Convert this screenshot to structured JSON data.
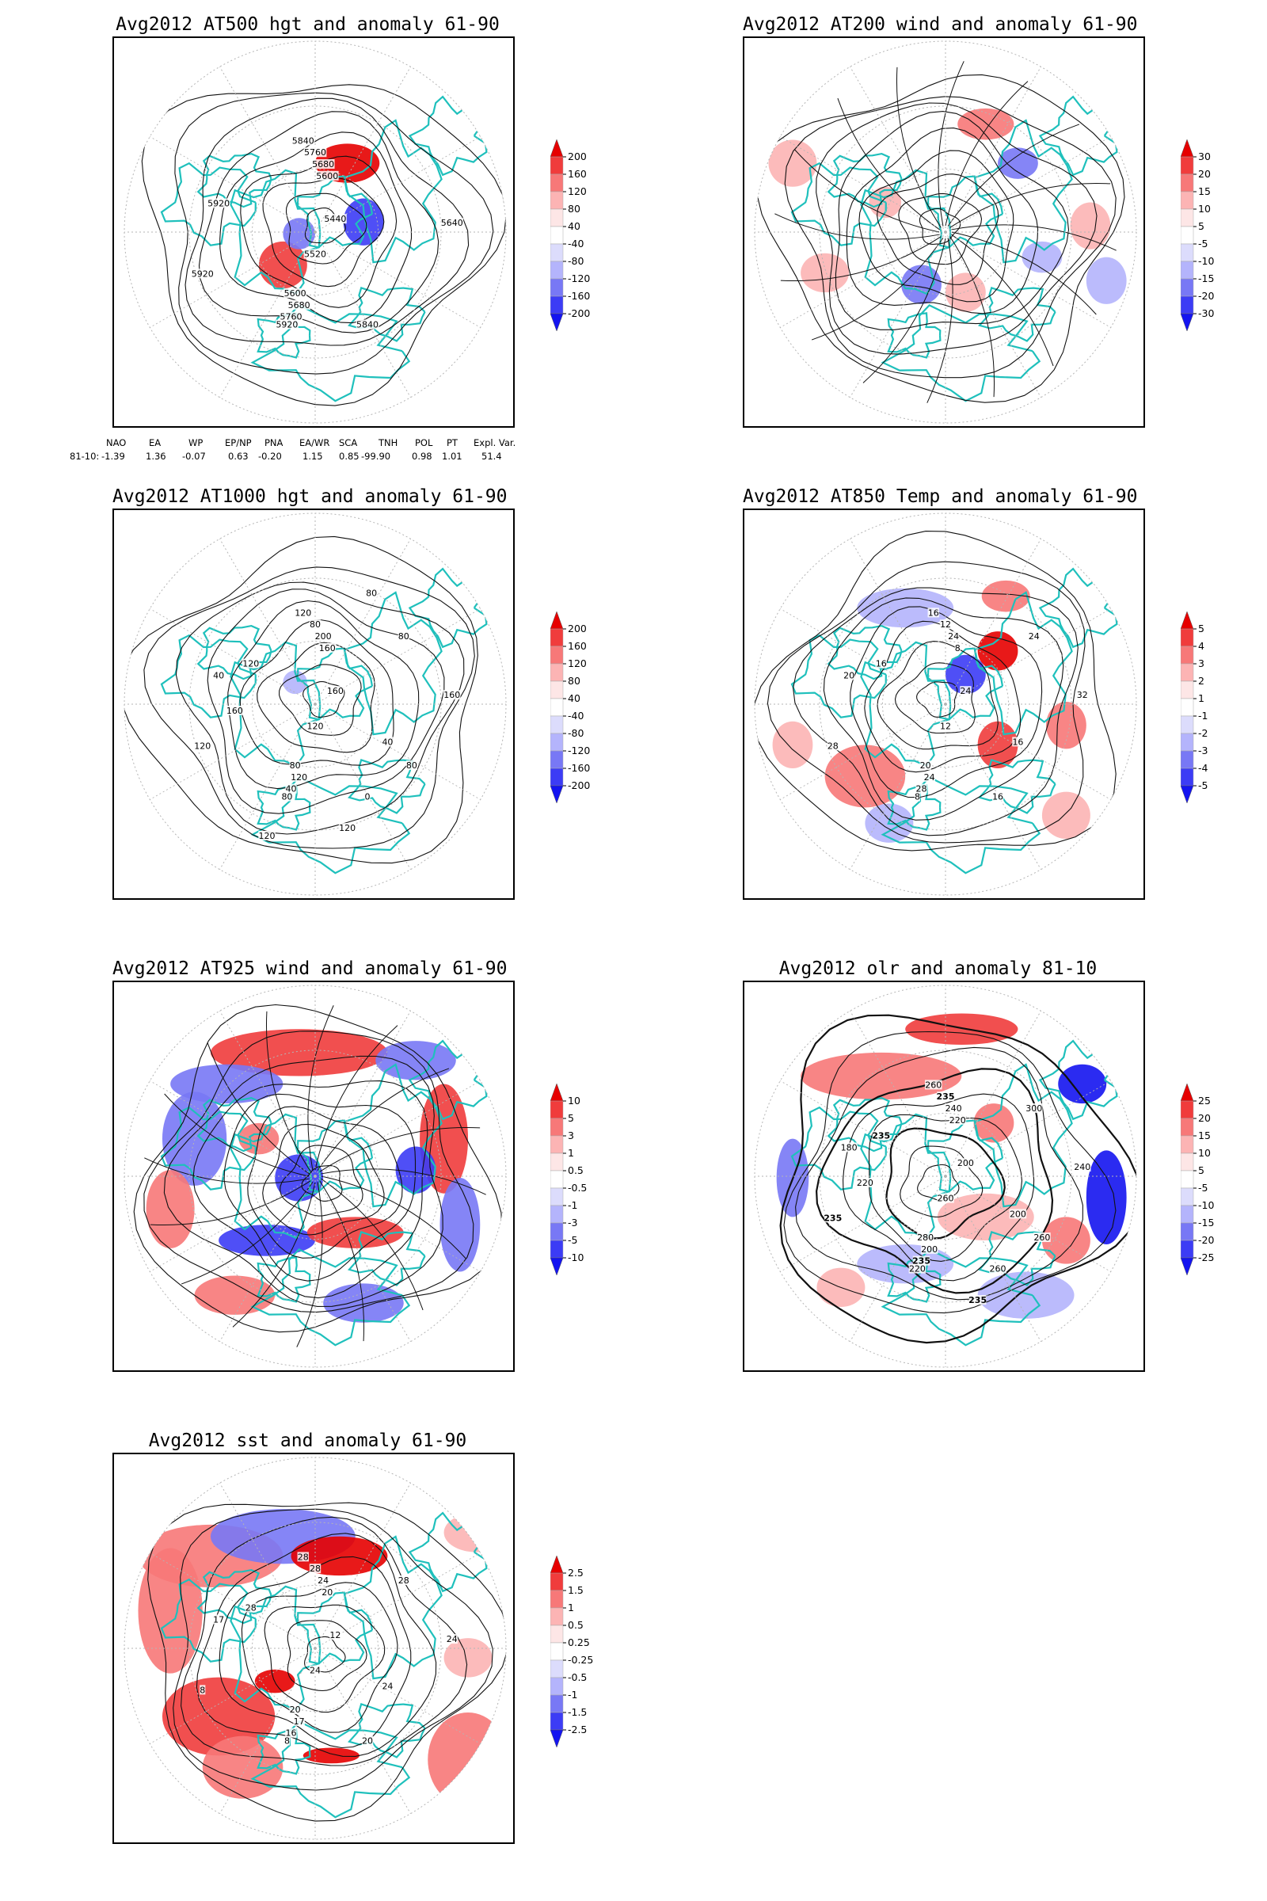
{
  "colors": {
    "land": "#1fc0bc",
    "contour": "#111111",
    "grid": "#b5b5b5",
    "pos_strong": "#e60000",
    "neg_strong": "#1414f0"
  },
  "chart_data": [
    {
      "type": "heatmap",
      "title": "Avg2012 AT500 hgt and anomaly 61-90",
      "projection": "polar-stereographic",
      "contour_labels": [
        "5840",
        "5760",
        "5680",
        "5600",
        "5920",
        "5440",
        "5920",
        "5520",
        "5600",
        "5680",
        "5760",
        "5920",
        "5840",
        "5640"
      ],
      "colorbar": {
        "levels": [
          "200",
          "160",
          "120",
          "80",
          "40",
          "-40",
          "-80",
          "-120",
          "-160",
          "-200"
        ]
      }
    },
    {
      "type": "heatmap",
      "title": "Avg2012 AT200 wind and anomaly 61-90",
      "projection": "polar-stereographic",
      "contour_labels": [],
      "colorbar": {
        "levels": [
          "30",
          "20",
          "15",
          "10",
          "5",
          "-5",
          "-10",
          "-15",
          "-20",
          "-30"
        ]
      }
    },
    {
      "type": "heatmap",
      "title": "Avg2012 AT1000 hgt and anomaly 61-90",
      "projection": "polar-stereographic",
      "contour_labels": [
        "120",
        "80",
        "200",
        "160",
        "40",
        "160",
        "120",
        "120",
        "80",
        "120",
        "40",
        "80",
        "0",
        "160",
        "80",
        "120",
        "40",
        "160",
        "120",
        "80",
        "120",
        "80",
        "120"
      ],
      "colorbar": {
        "levels": [
          "200",
          "160",
          "120",
          "80",
          "40",
          "-40",
          "-80",
          "-120",
          "-160",
          "-200"
        ]
      }
    },
    {
      "type": "heatmap",
      "title": "Avg2012 AT850 Temp and anomaly 61-90",
      "projection": "polar-stereographic",
      "contour_labels": [
        "16",
        "12",
        "24",
        "8",
        "20",
        "24",
        "28",
        "12",
        "20",
        "24",
        "28",
        "8",
        "16",
        "32",
        "24",
        "16",
        "16"
      ],
      "colorbar": {
        "levels": [
          "5",
          "4",
          "3",
          "2",
          "1",
          "-1",
          "-2",
          "-3",
          "-4",
          "-5"
        ]
      }
    },
    {
      "type": "heatmap",
      "title": "Avg2012 AT925 wind and anomaly 61-90",
      "projection": "polar-stereographic",
      "contour_labels": [],
      "colorbar": {
        "levels": [
          "10",
          "5",
          "3",
          "1",
          "0.5",
          "-0.5",
          "-1",
          "-3",
          "-5",
          "-10"
        ]
      }
    },
    {
      "type": "heatmap",
      "title": "Avg2012 olr and anomaly 81-10",
      "projection": "polar-stereographic",
      "contour_labels": [
        "260",
        "235",
        "240",
        "220",
        "180",
        "200",
        "235",
        "260",
        "280",
        "200",
        "235",
        "220",
        "260",
        "240",
        "300",
        "235",
        "200",
        "220",
        "235",
        "260"
      ],
      "colorbar": {
        "levels": [
          "25",
          "20",
          "15",
          "10",
          "5",
          "-5",
          "-10",
          "-15",
          "-20",
          "-25"
        ]
      }
    },
    {
      "type": "heatmap",
      "title": "Avg2012 sst and anomaly 61-90",
      "projection": "polar-stereographic",
      "contour_labels": [
        "28",
        "28",
        "24",
        "20",
        "17",
        "12",
        "8",
        "24",
        "20",
        "17",
        "16",
        "8",
        "20",
        "24",
        "28",
        "28",
        "24"
      ],
      "colorbar": {
        "levels": [
          "2.5",
          "1.5",
          "1",
          "0.5",
          "0.25",
          "-0.25",
          "-0.5",
          "-1",
          "-1.5",
          "-2.5"
        ]
      }
    }
  ],
  "teleconnections": {
    "headers": [
      "NAO",
      "EA",
      "WP",
      "EP/NP",
      "PNA",
      "EA/WR",
      "SCA",
      "TNH",
      "POL",
      "PT",
      "Expl. Var."
    ],
    "row_label": "81-10:",
    "values": [
      "-1.39",
      "1.36",
      "-0.07",
      "0.63",
      "-0.20",
      "1.15",
      "0.85",
      "-99.90",
      "0.98",
      "1.01",
      "51.4"
    ]
  }
}
